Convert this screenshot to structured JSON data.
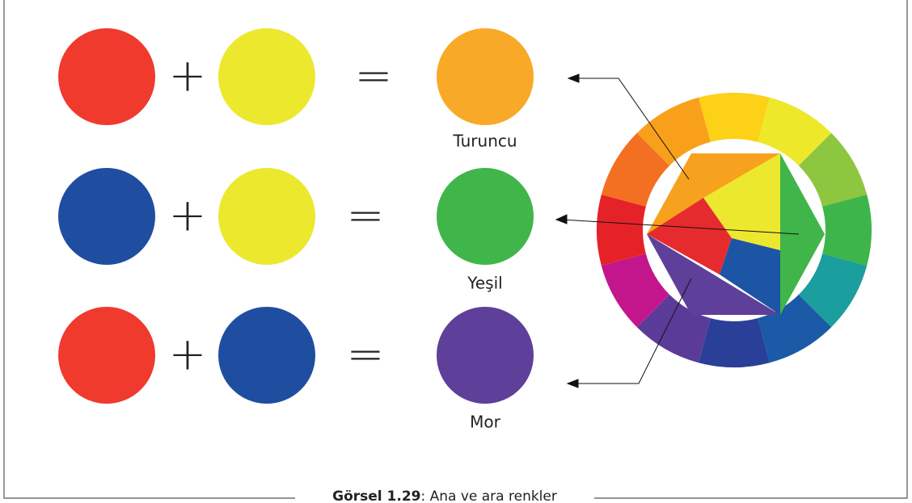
{
  "rows": [
    {
      "plus": "+",
      "equals": "=",
      "label": "Turuncu"
    },
    {
      "plus": "+",
      "equals": "=",
      "label": "Yeşil"
    },
    {
      "plus": "+",
      "equals": "=",
      "label": "Mor"
    }
  ],
  "caption": {
    "number": "Görsel 1.29",
    "text": ": Ana ve ara renkler"
  }
}
